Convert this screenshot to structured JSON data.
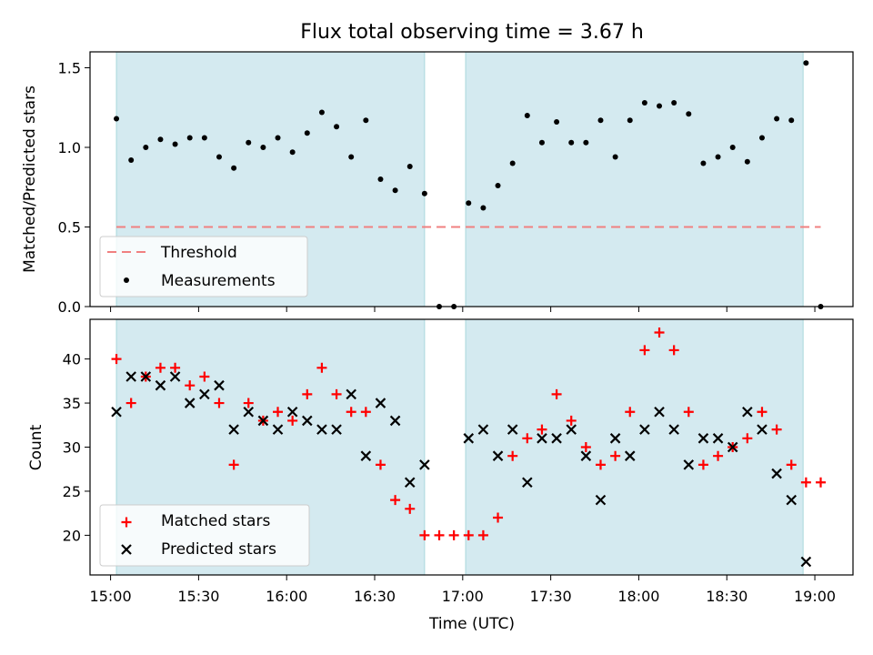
{
  "chart_data": {
    "title": "Flux total observing time = 3.67 h",
    "type": "scatter",
    "colors": {
      "shade": "#d4eaf0",
      "shade_edge": "#a9d8dc",
      "threshold": "#f08080",
      "matched": "#ff0000",
      "predicted": "#000000",
      "measurement": "#000000"
    },
    "xlabel": "Time (UTC)",
    "x_ticks": [
      "15:00",
      "15:30",
      "16:00",
      "16:30",
      "17:00",
      "17:30",
      "18:00",
      "18:30",
      "19:00"
    ],
    "xlim": [
      "14:53",
      "19:13"
    ],
    "shaded_intervals": [
      [
        "15:02",
        "16:47"
      ],
      [
        "17:01",
        "18:56"
      ]
    ],
    "x": [
      "15:02",
      "15:07",
      "15:12",
      "15:17",
      "15:22",
      "15:27",
      "15:32",
      "15:37",
      "15:42",
      "15:47",
      "15:52",
      "15:57",
      "16:02",
      "16:07",
      "16:12",
      "16:17",
      "16:22",
      "16:27",
      "16:32",
      "16:37",
      "16:42",
      "16:47",
      "16:52",
      "16:57",
      "17:02",
      "17:07",
      "17:12",
      "17:17",
      "17:22",
      "17:27",
      "17:32",
      "17:37",
      "17:42",
      "17:47",
      "17:52",
      "17:57",
      "18:02",
      "18:07",
      "18:12",
      "18:17",
      "18:22",
      "18:27",
      "18:32",
      "18:37",
      "18:42",
      "18:47",
      "18:52",
      "18:57",
      "19:02"
    ],
    "panels": [
      {
        "ylabel": "Matched/Predicted stars",
        "ylim": [
          0,
          1.6
        ],
        "y_ticks": [
          "0.0",
          "0.5",
          "1.0",
          "1.5"
        ],
        "threshold": 0.5,
        "legend": {
          "position": "lower-left",
          "entries": [
            "Threshold",
            "Measurements"
          ]
        },
        "series": [
          {
            "name": "Measurements",
            "marker": "dot",
            "values": [
              1.18,
              0.92,
              1.0,
              1.05,
              1.02,
              1.06,
              1.06,
              0.94,
              0.87,
              1.03,
              1.0,
              1.06,
              0.97,
              1.09,
              1.22,
              1.13,
              0.94,
              1.17,
              0.8,
              0.73,
              0.88,
              0.71,
              0.0,
              0.0,
              0.65,
              0.62,
              0.76,
              0.9,
              1.2,
              1.03,
              1.16,
              1.03,
              1.03,
              1.17,
              0.94,
              1.17,
              1.28,
              1.26,
              1.28,
              1.21,
              0.9,
              0.94,
              1.0,
              0.91,
              1.06,
              1.18,
              1.17,
              1.53,
              0.0
            ]
          }
        ]
      },
      {
        "ylabel": "Count",
        "ylim": [
          15.5,
          44.5
        ],
        "y_ticks": [
          "20",
          "25",
          "30",
          "35",
          "40"
        ],
        "legend": {
          "position": "lower-left",
          "entries": [
            "Matched stars",
            "Predicted stars"
          ]
        },
        "series": [
          {
            "name": "Matched stars",
            "marker": "plus",
            "values": [
              40,
              35,
              38,
              39,
              39,
              37,
              38,
              35,
              28,
              35,
              33,
              34,
              33,
              36,
              39,
              36,
              34,
              34,
              28,
              24,
              23,
              20,
              20,
              20,
              20,
              20,
              22,
              29,
              31,
              32,
              36,
              33,
              30,
              28,
              29,
              34,
              41,
              43,
              41,
              34,
              28,
              29,
              30,
              31,
              34,
              32,
              28,
              26,
              26
            ]
          },
          {
            "name": "Predicted stars",
            "marker": "x",
            "values": [
              34,
              38,
              38,
              37,
              38,
              35,
              36,
              37,
              32,
              34,
              33,
              32,
              34,
              33,
              32,
              32,
              36,
              29,
              35,
              33,
              26,
              28,
              null,
              null,
              31,
              32,
              29,
              32,
              26,
              31,
              31,
              32,
              29,
              24,
              31,
              29,
              32,
              34,
              32,
              28,
              31,
              31,
              30,
              34,
              32,
              27,
              24,
              17,
              null
            ]
          }
        ]
      }
    ]
  }
}
